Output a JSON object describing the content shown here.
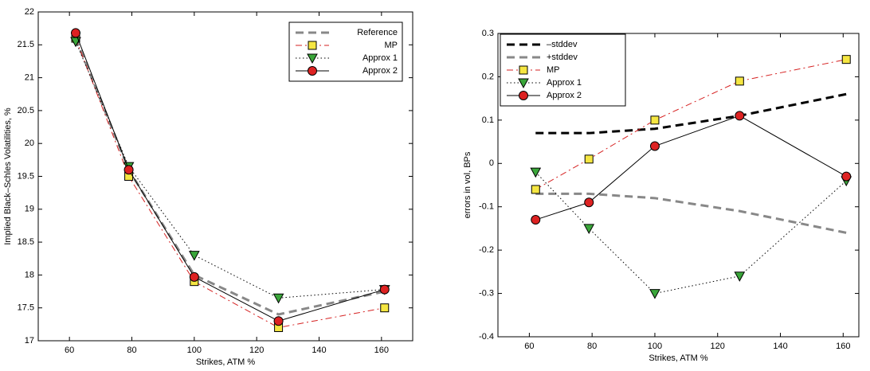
{
  "chart_data": [
    {
      "type": "line",
      "xlabel": "Strikes, ATM %",
      "ylabel": "Implied Black–Schles Volatilities, %",
      "x": [
        62,
        79,
        100,
        127,
        161
      ],
      "xlim": [
        50,
        170
      ],
      "xticks": [
        60,
        80,
        100,
        120,
        140,
        160
      ],
      "ylim": [
        17,
        22
      ],
      "yticks": [
        17,
        17.5,
        18,
        18.5,
        19,
        19.5,
        20,
        20.5,
        21,
        21.5,
        22
      ],
      "legend": "upper right",
      "series": [
        {
          "name": "Reference",
          "color": "#888888",
          "line_style": "dashed",
          "marker": "none",
          "values": [
            21.6,
            19.6,
            18.0,
            17.4,
            17.75
          ]
        },
        {
          "name": "MP",
          "color": "#d62222",
          "line_style": "dashdot",
          "marker": "square",
          "marker_color": "#f5e642",
          "values": [
            21.6,
            19.5,
            17.9,
            17.2,
            17.5
          ]
        },
        {
          "name": "Approx 1",
          "color": "#000000",
          "line_style": "dotted",
          "marker": "triangle-down",
          "marker_color": "#3aa63a",
          "values": [
            21.55,
            19.65,
            18.3,
            17.65,
            17.78
          ]
        },
        {
          "name": "Approx 2",
          "color": "#000000",
          "line_style": "solid",
          "marker": "circle",
          "marker_color": "#dd2222",
          "values": [
            21.68,
            19.6,
            17.97,
            17.3,
            17.78
          ]
        }
      ]
    },
    {
      "type": "line",
      "xlabel": "Strikes, ATM %",
      "ylabel": "errors in vol, BPs",
      "x": [
        62,
        79,
        100,
        127,
        161
      ],
      "xlim": [
        50,
        165
      ],
      "xticks": [
        60,
        80,
        100,
        120,
        140,
        160
      ],
      "ylim": [
        -0.4,
        0.3
      ],
      "yticks": [
        -0.4,
        -0.3,
        -0.2,
        -0.1,
        0,
        0.1,
        0.2,
        0.3
      ],
      "legend": "upper left",
      "series": [
        {
          "name": "–stddev",
          "color": "#000000",
          "line_style": "dashed",
          "marker": "none",
          "values": [
            0.07,
            0.07,
            0.08,
            0.11,
            0.16
          ]
        },
        {
          "name": "+stddev",
          "color": "#888888",
          "line_style": "dashed",
          "marker": "none",
          "values": [
            -0.07,
            -0.07,
            -0.08,
            -0.11,
            -0.16
          ]
        },
        {
          "name": "MP",
          "color": "#d62222",
          "line_style": "dashdot",
          "marker": "square",
          "marker_color": "#f5e642",
          "values": [
            -0.06,
            0.01,
            0.1,
            0.19,
            0.24
          ]
        },
        {
          "name": "Approx 1",
          "color": "#000000",
          "line_style": "dotted",
          "marker": "triangle-down",
          "marker_color": "#3aa63a",
          "values": [
            -0.02,
            -0.15,
            -0.3,
            -0.26,
            -0.04
          ]
        },
        {
          "name": "Approx 2",
          "color": "#000000",
          "line_style": "solid",
          "marker": "circle",
          "marker_color": "#dd2222",
          "values": [
            -0.13,
            -0.09,
            0.04,
            0.11,
            -0.03
          ]
        }
      ]
    }
  ]
}
